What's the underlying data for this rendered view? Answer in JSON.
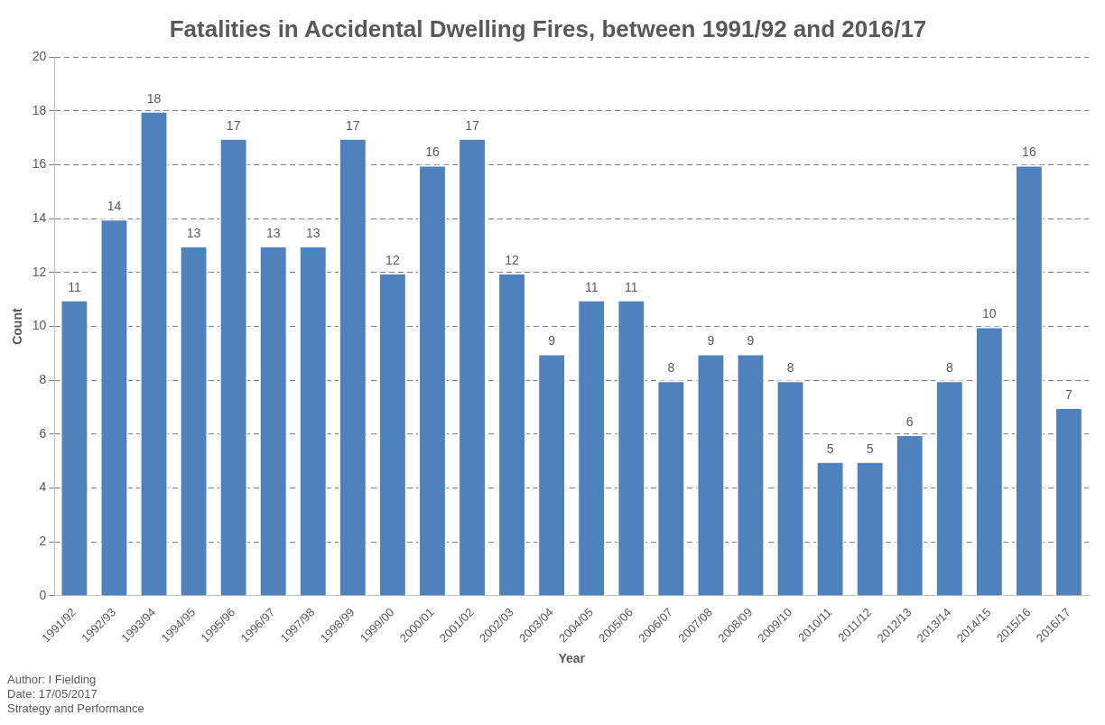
{
  "chart_data": {
    "type": "bar",
    "title": "Fatalities in Accidental Dwelling Fires, between 1991/92 and 2016/17",
    "xlabel": "Year",
    "ylabel": "Count",
    "categories": [
      "1991/92",
      "1992/93",
      "1993/94",
      "1994/95",
      "1995/96",
      "1996/97",
      "1997/98",
      "1998/99",
      "1999/00",
      "2000/01",
      "2001/02",
      "2002/03",
      "2003/04",
      "2004/05",
      "2005/06",
      "2006/07",
      "2007/08",
      "2008/09",
      "2009/10",
      "2010/11",
      "2011/12",
      "2012/13",
      "2013/14",
      "2014/15",
      "2015/16",
      "2016/17"
    ],
    "values": [
      11,
      14,
      18,
      13,
      17,
      13,
      13,
      17,
      12,
      16,
      17,
      12,
      9,
      11,
      11,
      8,
      9,
      9,
      8,
      5,
      5,
      6,
      8,
      10,
      16,
      7
    ],
    "color": "#4f81bd",
    "ylim": [
      0,
      20
    ],
    "yticks": [
      0,
      2,
      4,
      6,
      8,
      10,
      12,
      14,
      16,
      18,
      20
    ],
    "grid": "y",
    "data_labels": true,
    "annotations": [
      "Author: I Fielding",
      "Date: 17/05/2017",
      "Strategy and Performance"
    ]
  }
}
